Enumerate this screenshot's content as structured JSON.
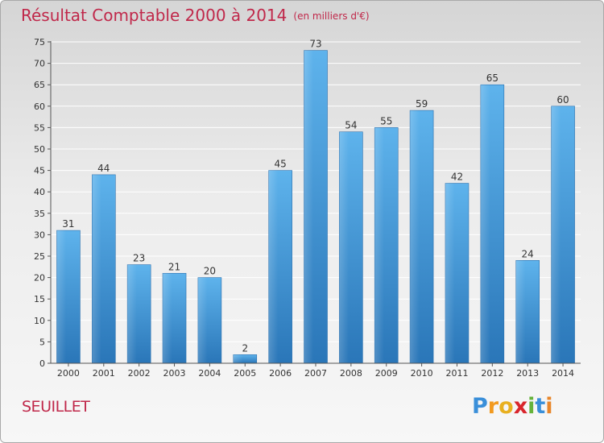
{
  "chart_data": {
    "type": "bar",
    "title": "Résultat Comptable 2000 à 2014",
    "subtitle": "(en milliers d'€)",
    "categories": [
      "2000",
      "2001",
      "2002",
      "2003",
      "2004",
      "2005",
      "2006",
      "2007",
      "2008",
      "2009",
      "2010",
      "2011",
      "2012",
      "2013",
      "2014"
    ],
    "values": [
      31,
      44,
      23,
      21,
      20,
      2,
      45,
      73,
      54,
      55,
      59,
      42,
      65,
      24,
      60
    ],
    "ylim": [
      0,
      75
    ],
    "yticks": [
      0,
      5,
      10,
      15,
      20,
      25,
      30,
      35,
      40,
      45,
      50,
      55,
      60,
      65,
      70,
      75
    ],
    "xlabel": "",
    "ylabel": "",
    "grid": true
  },
  "commune": "SEUILLET",
  "logo": {
    "letters": [
      "P",
      "r",
      "o",
      "x",
      "i",
      "t",
      "i"
    ],
    "colors": [
      "#3a8fd9",
      "#f29a1f",
      "#e8b020",
      "#d9262c",
      "#66b33b",
      "#3a8fd9",
      "#e8862a"
    ]
  },
  "colors": {
    "bar": "#3d94d6",
    "title": "#c0284a",
    "grid": "#ffffff"
  }
}
